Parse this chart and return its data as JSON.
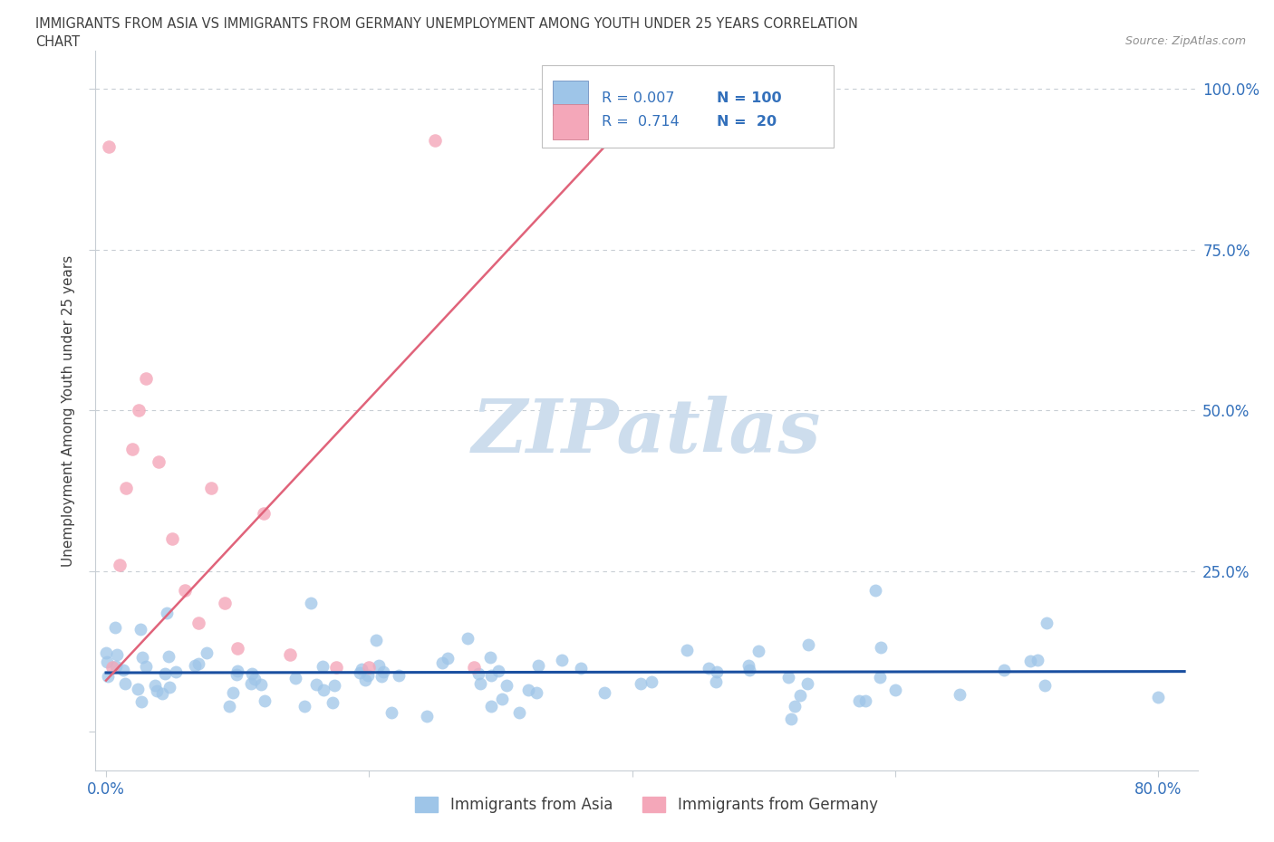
{
  "title_line1": "IMMIGRANTS FROM ASIA VS IMMIGRANTS FROM GERMANY UNEMPLOYMENT AMONG YOUTH UNDER 25 YEARS CORRELATION",
  "title_line2": "CHART",
  "source_text": "Source: ZipAtlas.com",
  "ylabel": "Unemployment Among Youth under 25 years",
  "legend_R_asia": "0.007",
  "legend_N_asia": "100",
  "legend_R_germany": "0.714",
  "legend_N_germany": "20",
  "color_asia": "#9ec5e8",
  "color_germany": "#f4a7b9",
  "line_color_asia": "#1a4fa0",
  "line_color_germany": "#e0637a",
  "watermark_color": "#cddded",
  "title_color": "#404040",
  "axis_label_color": "#3370bb",
  "grid_color": "#c8ced4",
  "background_color": "#ffffff",
  "xlim_min": -0.008,
  "xlim_max": 0.83,
  "ylim_min": -0.06,
  "ylim_max": 1.06
}
